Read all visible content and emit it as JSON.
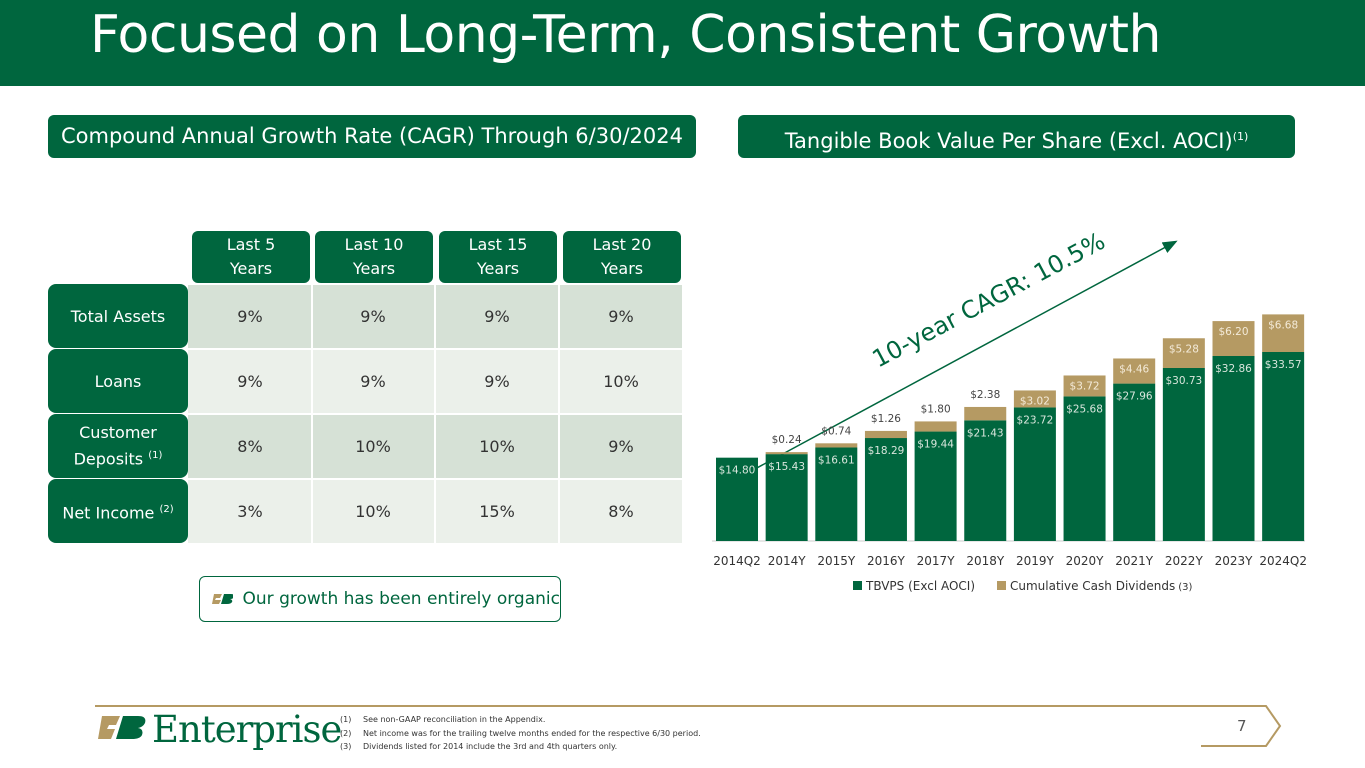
{
  "title": "Focused on Long-Term, Consistent Growth",
  "cagr_section": {
    "header": "Compound Annual Growth Rate (CAGR) Through 6/30/2024",
    "columns": [
      {
        "line1": "Last 5",
        "line2": "Years"
      },
      {
        "line1": "Last 10",
        "line2": "Years"
      },
      {
        "line1": "Last 15",
        "line2": "Years"
      },
      {
        "line1": "Last 20",
        "line2": "Years"
      }
    ],
    "rows": [
      {
        "label": "Total Assets",
        "note": "",
        "values": [
          "9%",
          "9%",
          "9%",
          "9%"
        ]
      },
      {
        "label": "Loans",
        "note": "",
        "values": [
          "9%",
          "9%",
          "9%",
          "10%"
        ]
      },
      {
        "label": "Customer Deposits",
        "label_line1": "Customer",
        "label_line2": "Deposits",
        "note": "(1)",
        "values": [
          "8%",
          "10%",
          "10%",
          "9%"
        ]
      },
      {
        "label": "Net Income",
        "note": "(2)",
        "values": [
          "3%",
          "10%",
          "15%",
          "8%"
        ]
      }
    ],
    "organic_text": "Our growth has been entirely organic"
  },
  "chart_header": {
    "text": "Tangible Book Value Per Share (Excl. AOCI)",
    "note": "(1)"
  },
  "chart_data": {
    "type": "bar",
    "stacked": true,
    "title": "Tangible Book Value Per Share (Excl. AOCI)",
    "categories": [
      "2014Q2",
      "2014Y",
      "2015Y",
      "2016Y",
      "2017Y",
      "2018Y",
      "2019Y",
      "2020Y",
      "2021Y",
      "2022Y",
      "2023Y",
      "2024Q2"
    ],
    "series": [
      {
        "name": "TBVPS (Excl AOCI)",
        "color": "#00663e",
        "values": [
          14.8,
          15.43,
          16.61,
          18.29,
          19.44,
          21.43,
          23.72,
          25.68,
          27.96,
          30.73,
          32.86,
          33.57
        ],
        "labels": [
          "$14.80",
          "$15.43",
          "$16.61",
          "$18.29",
          "$19.44",
          "$21.43",
          "$23.72",
          "$25.68",
          "$27.96",
          "$30.73",
          "$32.86",
          "$33.57"
        ]
      },
      {
        "name": "Cumulative Cash Dividends",
        "note": "(3)",
        "color": "#b59a63",
        "values": [
          0,
          0.24,
          0.74,
          1.26,
          1.8,
          2.38,
          3.02,
          3.72,
          4.46,
          5.28,
          6.2,
          6.68
        ],
        "labels": [
          "",
          "$0.24",
          "$0.74",
          "$1.26",
          "$1.80",
          "$2.38",
          "$3.02",
          "$3.72",
          "$4.46",
          "$5.28",
          "$6.20",
          "$6.68"
        ]
      }
    ],
    "ylim": [
      0,
      42
    ],
    "annotation": "10-year CAGR: 10.5%",
    "legend": "bottom"
  },
  "footer": {
    "brand": "Enterprise",
    "notes": [
      {
        "num": "(1)",
        "text": "See non-GAAP reconciliation in the Appendix."
      },
      {
        "num": "(2)",
        "text": "Net income was for the trailing twelve months ended for the respective 6/30 period."
      },
      {
        "num": "(3)",
        "text": "Dividends listed for 2014 include the 3rd and 4th quarters only."
      }
    ],
    "page": "7"
  }
}
